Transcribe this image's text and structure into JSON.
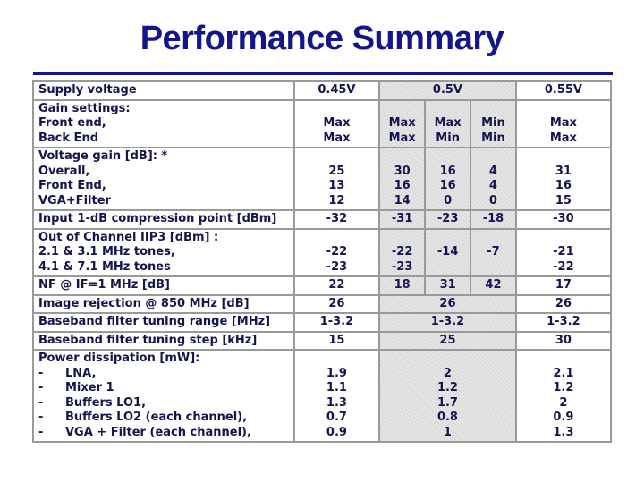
{
  "title": "Performance Summary",
  "columns": {
    "v045": "0.45V",
    "v05": "0.5V",
    "v055": "0.55V"
  },
  "supply_label": "Supply voltage",
  "gain_settings": {
    "label": [
      "Gain settings:",
      "Front end,",
      "Back End"
    ],
    "v045": [
      "Max",
      "Max"
    ],
    "v05a": [
      "Max",
      "Max"
    ],
    "v05b": [
      "Max",
      "Min"
    ],
    "v05c": [
      "Min",
      "Min"
    ],
    "v055": [
      "Max",
      "Max"
    ]
  },
  "voltage_gain": {
    "label": [
      "Voltage gain [dB]: *",
      "Overall,",
      "Front End,",
      "VGA+Filter"
    ],
    "v045": [
      "25",
      "13",
      "12"
    ],
    "v05a": [
      "30",
      "16",
      "14"
    ],
    "v05b": [
      "16",
      "16",
      "0"
    ],
    "v05c": [
      "4",
      "4",
      "0"
    ],
    "v055": [
      "31",
      "16",
      "15"
    ]
  },
  "compression": {
    "label": "Input 1-dB compression point [dBm]",
    "v045": "-32",
    "v05a": "-31",
    "v05b": "-23",
    "v05c": "-18",
    "v055": "-30"
  },
  "iip3": {
    "label": [
      "Out of Channel IIP3 [dBm] :",
      "2.1 & 3.1 MHz tones,",
      "4.1 & 7.1 MHz tones"
    ],
    "v045": [
      "-22",
      "-23"
    ],
    "v05a": [
      "-22",
      "-23"
    ],
    "v05b": "-14",
    "v05c": "-7",
    "v055": [
      "-21",
      "-22"
    ]
  },
  "nf": {
    "label": "NF @ IF=1 MHz [dB]",
    "v045": "22",
    "v05a": "18",
    "v05b": "31",
    "v05c": "42",
    "v055": "17"
  },
  "image_rejection": {
    "label": "Image rejection @ 850 MHz [dB]",
    "v045": "26",
    "v05": "26",
    "v055": "26"
  },
  "tuning_range": {
    "label": "Baseband filter tuning range [MHz]",
    "v045": "1-3.2",
    "v05": "1-3.2",
    "v055": "1-3.2"
  },
  "tuning_step": {
    "label": "Baseband filter tuning step [kHz]",
    "v045": "15",
    "v05": "25",
    "v055": "30"
  },
  "power": {
    "header": "Power dissipation [mW]:",
    "dash": "-",
    "items": [
      "LNA,",
      "Mixer 1",
      "Buffers LO1,",
      "Buffers LO2 (each channel),",
      "VGA + Filter (each channel),"
    ],
    "v045": [
      "1.9",
      "1.1",
      "1.3",
      "0.7",
      "0.9"
    ],
    "v05": [
      "2",
      "1.2",
      "1.7",
      "0.8",
      "1"
    ],
    "v055": [
      "2.1",
      "1.2",
      "2",
      "0.9",
      "1.3"
    ]
  }
}
